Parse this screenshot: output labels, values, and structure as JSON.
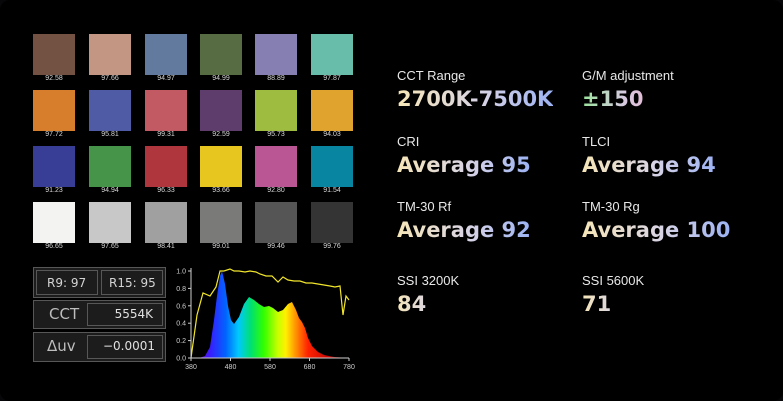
{
  "checker": {
    "patches": [
      {
        "color": "#735244",
        "value": "92.58"
      },
      {
        "color": "#c29682",
        "value": "97.66"
      },
      {
        "color": "#627a9d",
        "value": "94.97"
      },
      {
        "color": "#576c43",
        "value": "94.99"
      },
      {
        "color": "#8580b1",
        "value": "88.89"
      },
      {
        "color": "#67bdaa",
        "value": "97.87"
      },
      {
        "color": "#d67e2c",
        "value": "97.72"
      },
      {
        "color": "#505ba6",
        "value": "95.81"
      },
      {
        "color": "#c15a63",
        "value": "99.31"
      },
      {
        "color": "#5e3c6c",
        "value": "92.59"
      },
      {
        "color": "#9dbc40",
        "value": "95.73"
      },
      {
        "color": "#e0a32e",
        "value": "94.03"
      },
      {
        "color": "#383d96",
        "value": "91.23"
      },
      {
        "color": "#469449",
        "value": "94.94"
      },
      {
        "color": "#af363c",
        "value": "96.33"
      },
      {
        "color": "#e7c71f",
        "value": "93.66"
      },
      {
        "color": "#bb5695",
        "value": "92.80"
      },
      {
        "color": "#0885a1",
        "value": "91.54"
      },
      {
        "color": "#f3f3f2",
        "value": "96.65"
      },
      {
        "color": "#c8c8c8",
        "value": "97.65"
      },
      {
        "color": "#a0a0a0",
        "value": "98.41"
      },
      {
        "color": "#7a7a79",
        "value": "99.01"
      },
      {
        "color": "#555555",
        "value": "99.46"
      },
      {
        "color": "#343434",
        "value": "99.76"
      }
    ]
  },
  "readout": {
    "r9": "R9: 97",
    "r15": "R15: 95",
    "cct_label": "CCT",
    "cct_value": "5554K",
    "duv_label": "Δuv",
    "duv_value": "−0.0001"
  },
  "spectrum": {
    "x_ticks": [
      "380",
      "480",
      "580",
      "680",
      "780"
    ],
    "y_ticks": [
      "0.0",
      "0.2",
      "0.4",
      "0.6",
      "0.8",
      "1.0"
    ],
    "colors": {
      "line": "#f2e62c",
      "axis": "#cfcfcf"
    }
  },
  "stats": [
    {
      "label": "CCT Range",
      "value": "2700K-7500K"
    },
    {
      "label": "G/M adjustment",
      "value": "±150"
    },
    {
      "label": "CRI",
      "value": "Average 95"
    },
    {
      "label": "TLCI",
      "value": "Average 94"
    },
    {
      "label": "TM-30 Rf",
      "value": "Average 92"
    },
    {
      "label": "TM-30 Rg",
      "value": "Average 100"
    },
    {
      "label": "SSI 3200K",
      "value": "84"
    },
    {
      "label": "SSI 5600K",
      "value": "71"
    }
  ]
}
